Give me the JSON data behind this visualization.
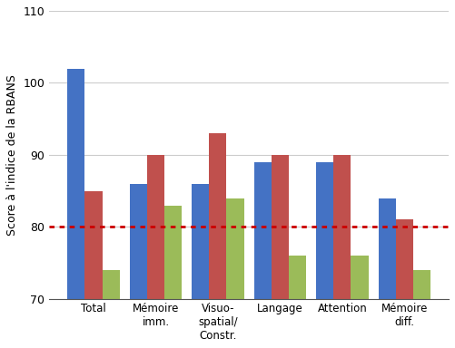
{
  "categories": [
    "Total",
    "Mémoire\nimm.",
    "Visuo-\nspatial/\nConstr.",
    "Langage",
    "Attention",
    "Mémoire\ndiff."
  ],
  "series": {
    "léger": [
      102,
      86,
      86,
      89,
      89,
      84
    ],
    "modéré": [
      85,
      90,
      93,
      90,
      90,
      81
    ],
    "sévère": [
      74,
      83,
      84,
      76,
      76,
      74
    ]
  },
  "colors": {
    "léger": "#4472C4",
    "modéré": "#C0504D",
    "sévère": "#9BBB59"
  },
  "ylabel": "Score à l'indice de la RBANS",
  "ylim": [
    70,
    110
  ],
  "yticks": [
    70,
    80,
    90,
    100,
    110
  ],
  "ybase": 70,
  "dashed_line_y": 80,
  "dashed_line_color": "#CC0000",
  "bar_width": 0.28,
  "figsize": [
    5.01,
    3.84
  ],
  "dpi": 100
}
